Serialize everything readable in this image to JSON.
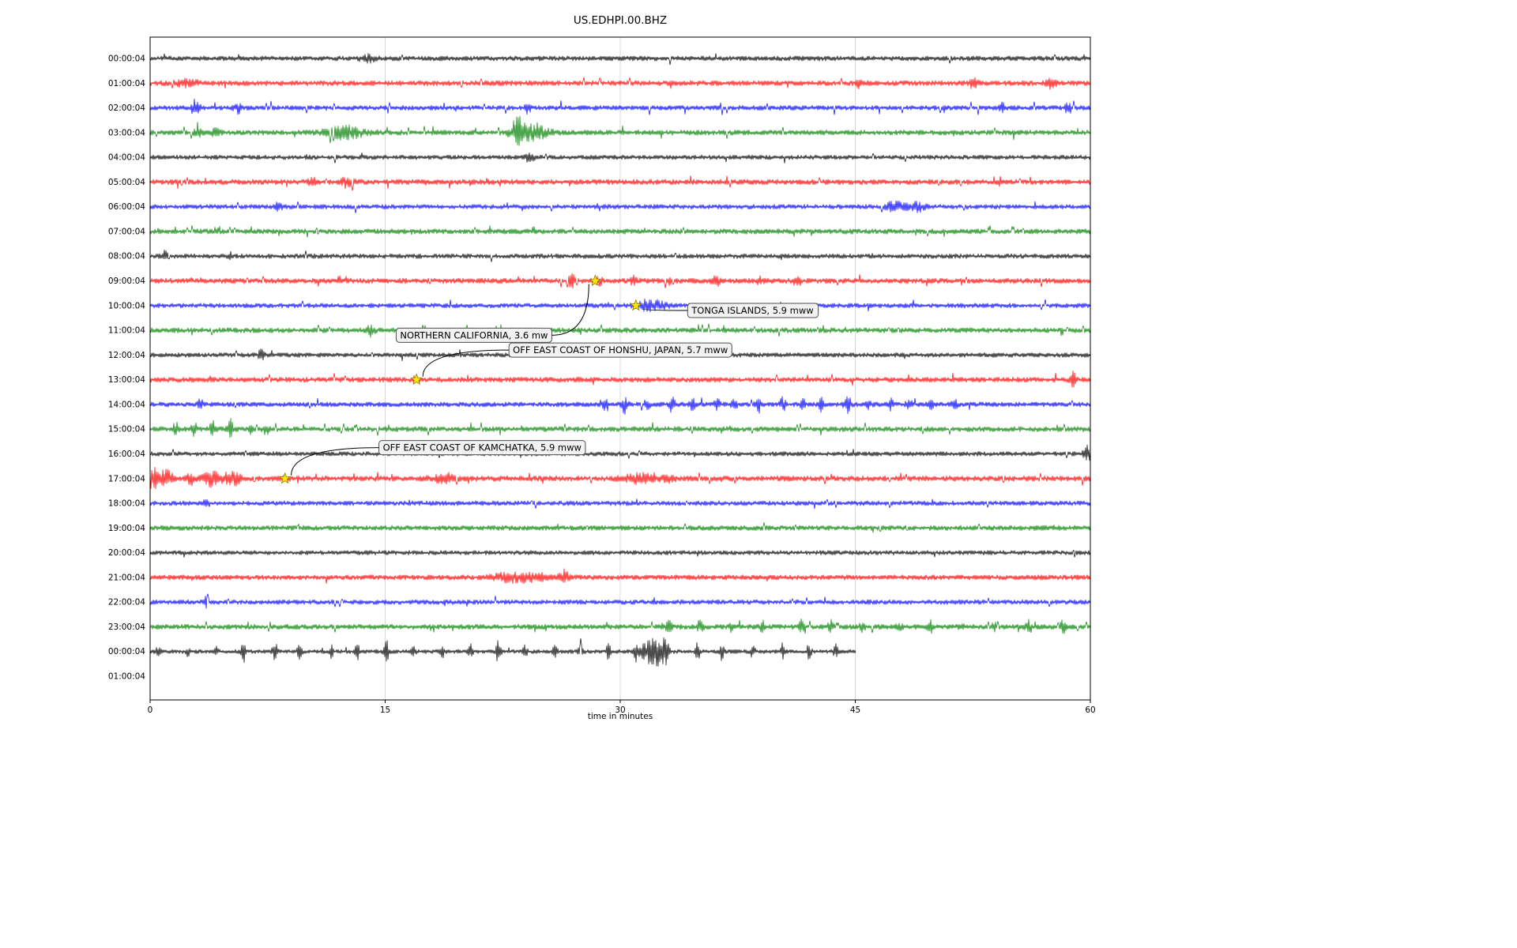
{
  "title": "US.EDHPI.00.BHZ",
  "colors": {
    "grid": "#cfcfcf",
    "axis": "#000000",
    "event_marker": "#ffe600",
    "event_marker_edge": "#8a7a00",
    "annotation_box_fill": "#f2f2f2",
    "annotation_box_border": "#4d4d4d",
    "trace_cycle": [
      "#000000",
      "#ff0000",
      "#0000ff",
      "#008000"
    ]
  },
  "chart_data": {
    "type": "line",
    "subtype": "seismogram-helicorder-dayplot",
    "title": "US.EDHPI.00.BHZ",
    "xlabel": "time in minutes",
    "xlim": [
      0,
      60
    ],
    "x_ticks": [
      0,
      15,
      30,
      45,
      60
    ],
    "grid": true,
    "rows": [
      {
        "label": "00:00:04",
        "color": "#000000",
        "amp": 3.2,
        "sr": 0.006,
        "sa": 5,
        "bursts": [
          {
            "m": 13.9,
            "w": 0.35,
            "a": 3.5
          }
        ],
        "dur": 60
      },
      {
        "label": "01:00:04",
        "color": "#ff0000",
        "amp": 3.4,
        "sr": 0.012,
        "sa": 6,
        "bursts": [
          {
            "m": 2.4,
            "w": 0.5,
            "a": 4
          },
          {
            "m": 45.2,
            "w": 0.12,
            "a": 7
          },
          {
            "m": 52.5,
            "w": 0.2,
            "a": 5
          },
          {
            "m": 57.5,
            "w": 0.2,
            "a": 5
          }
        ],
        "dur": 60
      },
      {
        "label": "02:00:04",
        "color": "#0000ff",
        "amp": 3.2,
        "sr": 0.022,
        "sa": 7,
        "bursts": [
          {
            "m": 2.9,
            "w": 0.18,
            "a": 10
          },
          {
            "m": 5.6,
            "w": 0.15,
            "a": 6
          },
          {
            "m": 24.1,
            "w": 0.12,
            "a": 6
          },
          {
            "m": 54.4,
            "w": 0.12,
            "a": 6
          },
          {
            "m": 58.6,
            "w": 0.15,
            "a": 8
          }
        ],
        "dur": 60
      },
      {
        "label": "03:00:04",
        "color": "#008000",
        "amp": 3.4,
        "sr": 0.022,
        "sa": 6,
        "bias": 0.7,
        "bursts": [
          {
            "m": 3.0,
            "w": 0.15,
            "a": 7
          },
          {
            "m": 4.2,
            "w": 0.15,
            "a": 6
          },
          {
            "m": 12.4,
            "w": 0.9,
            "a": 7
          },
          {
            "m": 23.5,
            "w": 0.35,
            "a": 17
          },
          {
            "m": 24.6,
            "w": 0.6,
            "a": 8
          }
        ],
        "dur": 60
      },
      {
        "label": "04:00:04",
        "color": "#000000",
        "amp": 3.0,
        "sr": 0.006,
        "sa": 5,
        "bursts": [
          {
            "m": 24.2,
            "w": 0.25,
            "a": 4
          }
        ],
        "dur": 60
      },
      {
        "label": "05:00:04",
        "color": "#ff0000",
        "amp": 3.5,
        "sr": 0.018,
        "sa": 6,
        "bursts": [
          {
            "m": 10.4,
            "w": 0.2,
            "a": 5
          },
          {
            "m": 12.6,
            "w": 0.3,
            "a": 6
          }
        ],
        "dur": 60
      },
      {
        "label": "06:00:04",
        "color": "#0000ff",
        "amp": 3.1,
        "sr": 0.01,
        "sa": 5,
        "bursts": [
          {
            "m": 8.2,
            "w": 0.15,
            "a": 5
          },
          {
            "m": 47.6,
            "w": 0.5,
            "a": 6
          },
          {
            "m": 49.0,
            "w": 0.3,
            "a": 5
          }
        ],
        "dur": 60
      },
      {
        "label": "07:00:04",
        "color": "#008000",
        "amp": 3.4,
        "sr": 0.03,
        "sa": 5,
        "bias": 0.72,
        "bursts": [],
        "dur": 60
      },
      {
        "label": "08:00:04",
        "color": "#000000",
        "amp": 3.1,
        "sr": 0.008,
        "sa": 5,
        "bursts": [
          {
            "m": 0.9,
            "w": 0.12,
            "a": 10
          },
          {
            "m": 5.1,
            "w": 0.12,
            "a": 6
          }
        ],
        "dur": 60
      },
      {
        "label": "09:00:04",
        "color": "#ff0000",
        "amp": 3.4,
        "sr": 0.016,
        "sa": 6,
        "bursts": [
          {
            "m": 26.9,
            "w": 0.15,
            "a": 7
          },
          {
            "m": 28.6,
            "w": 0.15,
            "a": 6
          },
          {
            "m": 30.9,
            "w": 0.15,
            "a": 7
          },
          {
            "m": 33.2,
            "w": 0.15,
            "a": 6
          },
          {
            "m": 36.1,
            "w": 0.15,
            "a": 7
          },
          {
            "m": 38.9,
            "w": 0.15,
            "a": 6
          },
          {
            "m": 41.2,
            "w": 0.15,
            "a": 5
          }
        ],
        "dur": 60
      },
      {
        "label": "10:00:04",
        "color": "#0000ff",
        "amp": 3.1,
        "sr": 0.008,
        "sa": 5,
        "bursts": [
          {
            "m": 31.7,
            "w": 0.55,
            "a": 6
          },
          {
            "m": 32.6,
            "w": 0.3,
            "a": 4
          }
        ],
        "dur": 60
      },
      {
        "label": "11:00:04",
        "color": "#008000",
        "amp": 3.4,
        "sr": 0.02,
        "sa": 5,
        "bias": 0.7,
        "bursts": [
          {
            "m": 14.1,
            "w": 0.15,
            "a": 8
          }
        ],
        "dur": 60
      },
      {
        "label": "12:00:04",
        "color": "#000000",
        "amp": 3.0,
        "sr": 0.006,
        "sa": 5,
        "bursts": [
          {
            "m": 7.1,
            "w": 0.12,
            "a": 7
          }
        ],
        "dur": 60
      },
      {
        "label": "13:00:04",
        "color": "#ff0000",
        "amp": 3.4,
        "sr": 0.012,
        "sa": 6,
        "bursts": [
          {
            "m": 58.9,
            "w": 0.12,
            "a": 8
          }
        ],
        "dur": 60
      },
      {
        "label": "14:00:04",
        "color": "#0000ff",
        "amp": 3.2,
        "sr": 0.01,
        "sa": 6,
        "trains": [
          {
            "from": 29,
            "to": 52,
            "step": 1.4,
            "w": 0.12,
            "a": 8
          }
        ],
        "bursts": [
          {
            "m": 3.2,
            "w": 0.12,
            "a": 5
          }
        ],
        "dur": 60
      },
      {
        "label": "15:00:04",
        "color": "#008000",
        "amp": 3.4,
        "sr": 0.022,
        "sa": 6,
        "bias": 0.7,
        "trains": [
          {
            "from": 1.5,
            "to": 8.5,
            "step": 1.2,
            "w": 0.12,
            "a": 8
          }
        ],
        "bursts": [],
        "dur": 60
      },
      {
        "label": "16:00:04",
        "color": "#000000",
        "amp": 3.0,
        "sr": 0.008,
        "sa": 4,
        "bursts": [
          {
            "m": 59.8,
            "w": 0.15,
            "a": 11
          }
        ],
        "dur": 60
      },
      {
        "label": "17:00:04",
        "color": "#ff0000",
        "amp": 3.6,
        "sr": 0.014,
        "sa": 6,
        "bursts": [
          {
            "m": 0.3,
            "w": 0.35,
            "a": 12
          },
          {
            "m": 1.1,
            "w": 0.25,
            "a": 8
          },
          {
            "m": 2.6,
            "w": 0.2,
            "a": 6
          },
          {
            "m": 4.1,
            "w": 0.45,
            "a": 10
          },
          {
            "m": 5.3,
            "w": 0.3,
            "a": 8
          },
          {
            "m": 18.7,
            "w": 0.55,
            "a": 4
          },
          {
            "m": 31.2,
            "w": 0.7,
            "a": 5
          },
          {
            "m": 33.1,
            "w": 0.3,
            "a": 4
          }
        ],
        "dur": 60
      },
      {
        "label": "18:00:04",
        "color": "#0000ff",
        "amp": 3.1,
        "sr": 0.006,
        "sa": 4,
        "bursts": [
          {
            "m": 3.6,
            "w": 0.12,
            "a": 5
          }
        ],
        "dur": 60
      },
      {
        "label": "19:00:04",
        "color": "#008000",
        "amp": 3.3,
        "sr": 0.01,
        "sa": 4,
        "bias": 0.7,
        "bursts": [],
        "dur": 60
      },
      {
        "label": "20:00:04",
        "color": "#000000",
        "amp": 2.9,
        "sr": 0.004,
        "sa": 4,
        "bursts": [],
        "dur": 60
      },
      {
        "label": "21:00:04",
        "color": "#ff0000",
        "amp": 3.3,
        "sr": 0.008,
        "sa": 5,
        "bursts": [
          {
            "m": 23.1,
            "w": 0.8,
            "a": 6
          },
          {
            "m": 24.6,
            "w": 0.4,
            "a": 5
          },
          {
            "m": 26.4,
            "w": 0.3,
            "a": 8
          }
        ],
        "dur": 60
      },
      {
        "label": "22:00:04",
        "color": "#0000ff",
        "amp": 3.1,
        "sr": 0.008,
        "sa": 5,
        "bursts": [
          {
            "m": 3.6,
            "w": 0.12,
            "a": 6
          }
        ],
        "dur": 60
      },
      {
        "label": "23:00:04",
        "color": "#008000",
        "amp": 3.4,
        "sr": 0.028,
        "sa": 6,
        "bias": 0.72,
        "trains": [
          {
            "from": 33,
            "to": 59,
            "step": 2.1,
            "w": 0.12,
            "a": 7
          }
        ],
        "bursts": [],
        "dur": 60
      },
      {
        "label": "00:00:04",
        "color": "#000000",
        "amp": 2.7,
        "sr": 0.008,
        "sa": 5,
        "bias": 0.75,
        "trains": [
          {
            "from": 0.6,
            "to": 44,
            "step": 1.8,
            "w": 0.1,
            "a": 11
          }
        ],
        "bursts": [
          {
            "m": 32.0,
            "w": 0.45,
            "a": 16
          },
          {
            "m": 32.7,
            "w": 0.25,
            "a": 12
          }
        ],
        "dur": 45
      },
      {
        "label": "01:00:04",
        "color": "#ff0000",
        "amp": 0,
        "sr": 0,
        "sa": 0,
        "bursts": [],
        "dur": 0
      }
    ],
    "events": [
      {
        "label": "TONGA ISLANDS, 5.9 mww",
        "star": {
          "row": 10,
          "minute": 31.0
        },
        "box": {
          "minute": 34.3,
          "row": 10.2
        }
      },
      {
        "label": "NORTHERN CALIFORNIA, 3.6 mw",
        "star": {
          "row": 9,
          "minute": 28.4
        },
        "box": {
          "minute": 15.7,
          "row": 11.2
        }
      },
      {
        "label": "OFF EAST COAST OF HONSHU, JAPAN, 5.7 mww",
        "star": {
          "row": 13,
          "minute": 17.0
        },
        "box": {
          "minute": 22.9,
          "row": 11.8
        }
      },
      {
        "label": "OFF EAST COAST OF KAMCHATKA, 5.9 mww",
        "star": {
          "row": 17,
          "minute": 8.6
        },
        "box": {
          "minute": 14.6,
          "row": 15.75
        }
      }
    ]
  }
}
